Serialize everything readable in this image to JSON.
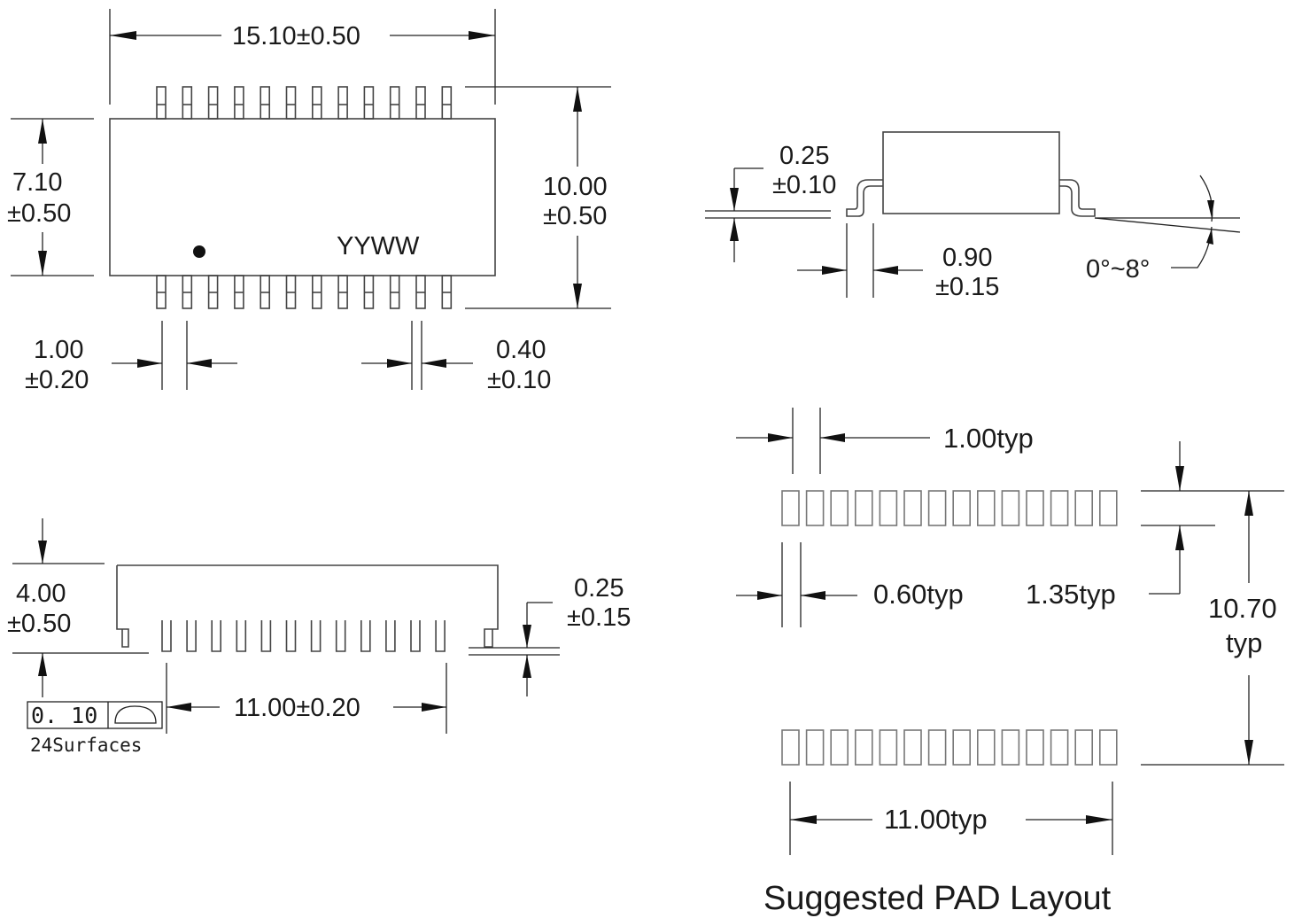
{
  "top_view": {
    "width": "15.10±0.50",
    "body_height_value": "7.10",
    "body_height_tol": "±0.50",
    "overall_height_value": "10.00",
    "overall_height_tol": "±0.50",
    "marking": "YYWW",
    "pitch_value": "1.00",
    "pitch_tol": "±0.20",
    "lead_width_value": "0.40",
    "lead_width_tol": "±0.10"
  },
  "side_view": {
    "height_value": "4.00",
    "height_tol": "±0.50",
    "standoff_value": "0.25",
    "standoff_tol": "±0.15",
    "lead_span": "11.00±0.20",
    "coplanarity_value": "0. 10",
    "coplanarity_note": "24Surfaces"
  },
  "lead_detail": {
    "thickness_value": "0.25",
    "thickness_tol": "±0.10",
    "foot_length_value": "0.90",
    "foot_length_tol": "±0.15",
    "angle": "0°~8°"
  },
  "pad_layout": {
    "title": "Suggested PAD Layout",
    "pitch": "1.00typ",
    "pad_width": "0.60typ",
    "pad_length": "1.35typ",
    "row_spacing_value": "10.70",
    "row_spacing_unit": "typ",
    "span": "11.00typ"
  }
}
